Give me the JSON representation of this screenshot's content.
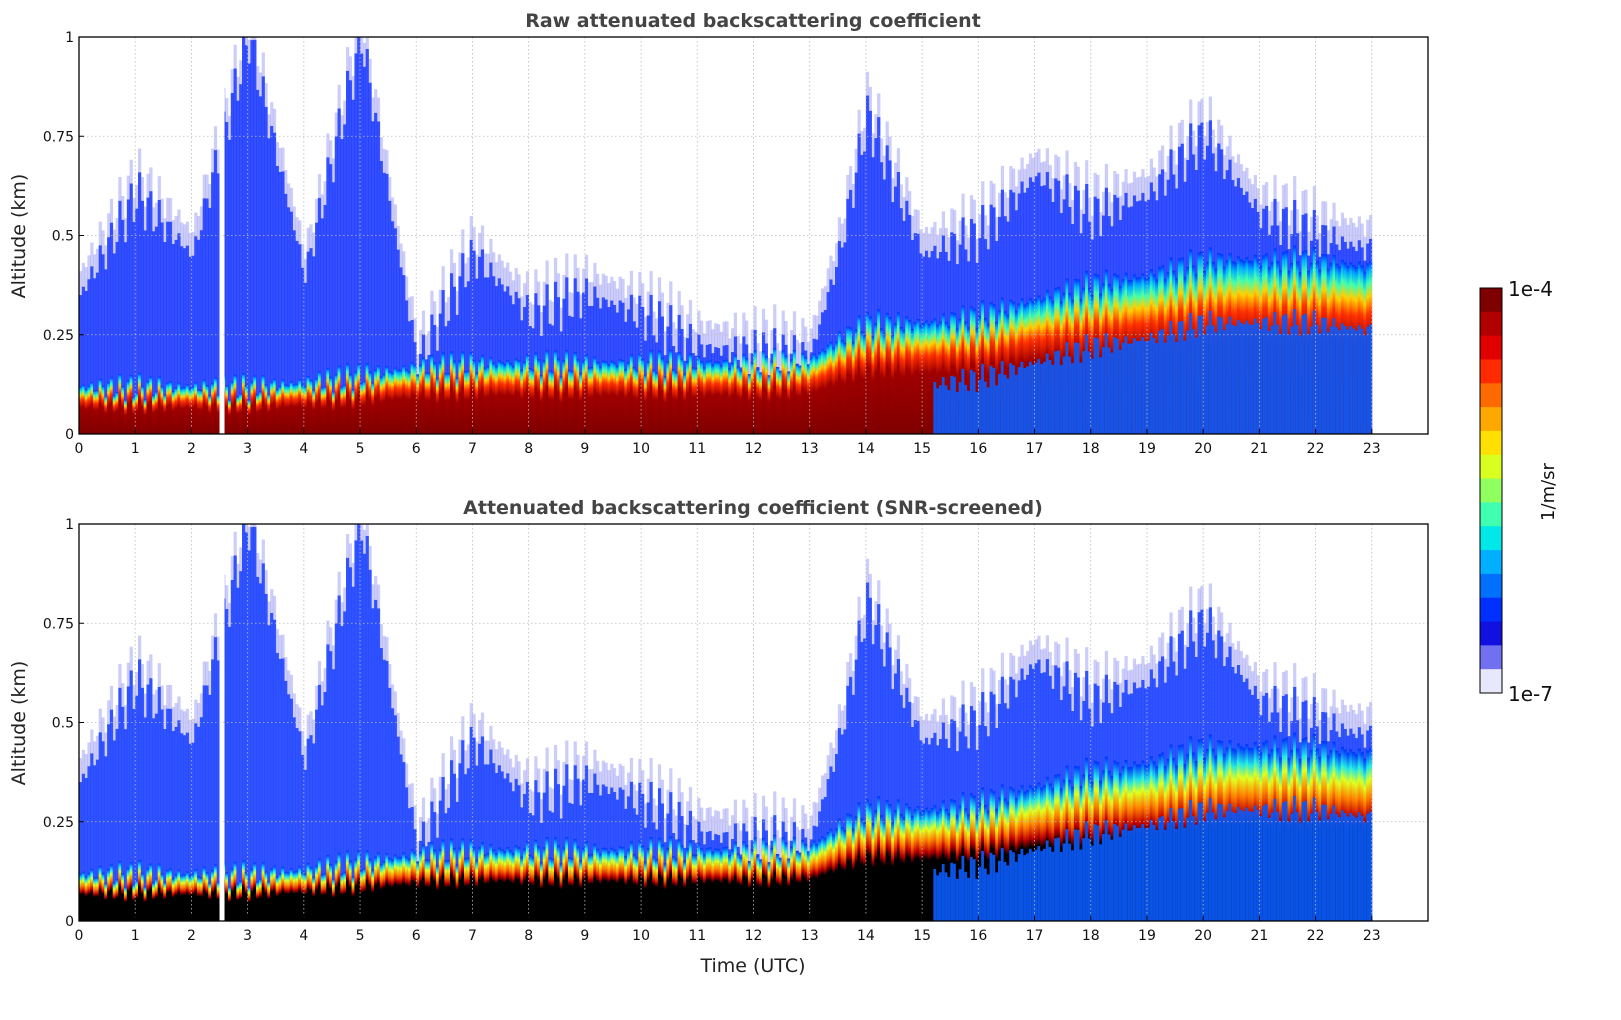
{
  "chart_data": [
    {
      "type": "heatmap",
      "title": "Raw attenuated backscattering coefficient",
      "xlabel": "",
      "ylabel": "Altitude (km)",
      "xlim": [
        0,
        24
      ],
      "ylim": [
        0,
        1
      ],
      "x_ticks": [
        "0",
        "1",
        "2",
        "3",
        "4",
        "5",
        "6",
        "7",
        "8",
        "9",
        "10",
        "11",
        "12",
        "13",
        "14",
        "15",
        "16",
        "17",
        "18",
        "19",
        "20",
        "21",
        "22",
        "23"
      ],
      "y_ticks": [
        "0",
        "0.25",
        "0.5",
        "0.75",
        "1"
      ],
      "grid": true,
      "colormap": "jet (log scale)",
      "data_end_time": 23,
      "gap_time": 2.5,
      "layers": [
        {
          "name": "boundary layer top (km)",
          "x": [
            0,
            1,
            2,
            3,
            4,
            5,
            6,
            7,
            8,
            9,
            10,
            11,
            12,
            13,
            13.5,
            14,
            15,
            16,
            17,
            18,
            19,
            20,
            21,
            22,
            23
          ],
          "y": [
            0.08,
            0.08,
            0.08,
            0.08,
            0.09,
            0.11,
            0.13,
            0.14,
            0.14,
            0.14,
            0.14,
            0.14,
            0.14,
            0.15,
            0.2,
            0.24,
            0.24,
            0.26,
            0.3,
            0.34,
            0.36,
            0.4,
            0.4,
            0.4,
            0.38
          ]
        },
        {
          "name": "aerosol upper extent (km)",
          "x": [
            0,
            1,
            2,
            3,
            4,
            5,
            6,
            7,
            8,
            9,
            10,
            11,
            12,
            13,
            13.5,
            14,
            15,
            16,
            17,
            18,
            19,
            20,
            21,
            22,
            23
          ],
          "y": [
            0.35,
            0.6,
            0.45,
            1.0,
            0.4,
            1.0,
            0.18,
            0.45,
            0.3,
            0.35,
            0.3,
            0.22,
            0.2,
            0.2,
            0.45,
            0.8,
            0.45,
            0.5,
            0.65,
            0.55,
            0.6,
            0.75,
            0.55,
            0.5,
            0.46
          ]
        }
      ]
    },
    {
      "type": "heatmap",
      "title": "Attenuated backscattering coefficient (SNR-screened)",
      "xlabel": "Time (UTC)",
      "ylabel": "Altitude (km)",
      "xlim": [
        0,
        24
      ],
      "ylim": [
        0,
        1
      ],
      "x_ticks": [
        "0",
        "1",
        "2",
        "3",
        "4",
        "5",
        "6",
        "7",
        "8",
        "9",
        "10",
        "11",
        "12",
        "13",
        "14",
        "15",
        "16",
        "17",
        "18",
        "19",
        "20",
        "21",
        "22",
        "23"
      ],
      "y_ticks": [
        "0",
        "0.25",
        "0.5",
        "0.75",
        "1"
      ],
      "grid": true,
      "colormap": "jet (log scale), saturated values black",
      "data_end_time": 23,
      "gap_time": 2.5
    }
  ],
  "colorbar": {
    "label": "1/m/sr",
    "max_label": "1e-4",
    "min_label": "1e-7",
    "colors": [
      "#7f0000",
      "#b00000",
      "#e00000",
      "#ff2a00",
      "#ff6a00",
      "#ffa800",
      "#ffe000",
      "#d8ff20",
      "#90ff60",
      "#40ffb0",
      "#00e8e8",
      "#00b0ff",
      "#0070ff",
      "#0030ff",
      "#1010e0",
      "#7070f0",
      "#e8e8fc"
    ]
  },
  "colors": {
    "title": "#444444",
    "grid": "#bbbbbb",
    "saturated": "#000000"
  }
}
